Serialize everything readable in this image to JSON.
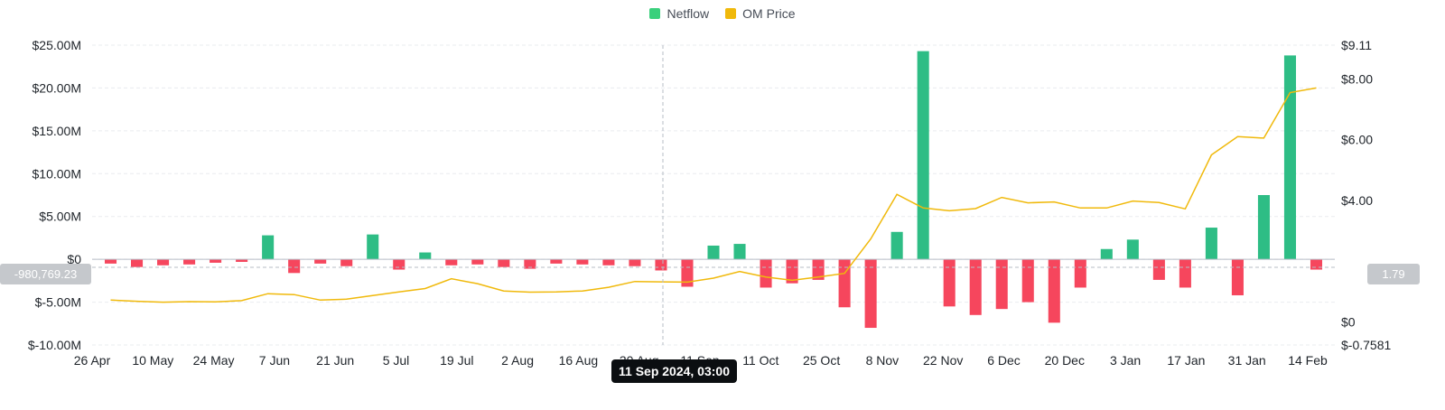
{
  "legend": [
    {
      "label": "Netflow",
      "color": "#2ebd85"
    },
    {
      "label": "OM Price",
      "color": "#f0b90b"
    }
  ],
  "crosshair": {
    "time_label": "11 Sep 2024, 03:00",
    "left_value": "-980,769.23",
    "right_value": "1.79"
  },
  "chart_data": {
    "type": "bar",
    "title": "",
    "xlabel": "",
    "ylabel": "",
    "x_tick_labels": [
      "26 Apr",
      "10 May",
      "24 May",
      "7 Jun",
      "21 Jun",
      "5 Jul",
      "19 Jul",
      "2 Aug",
      "16 Aug",
      "30 Aug",
      "11 Sep",
      "11 Oct",
      "25 Oct",
      "8 Nov",
      "22 Nov",
      "6 Dec",
      "20 Dec",
      "3 Jan",
      "17 Jan",
      "31 Jan",
      "14 Feb"
    ],
    "y_left": {
      "ticks": [
        25000000,
        20000000,
        15000000,
        10000000,
        5000000,
        0,
        -5000000,
        -10000000
      ],
      "tick_labels": [
        "$25.00M",
        "$20.00M",
        "$15.00M",
        "$10.00M",
        "$5.00M",
        "$0",
        "$-5.00M",
        "$-10.00M"
      ],
      "range": [
        -10000000,
        25000000
      ]
    },
    "y_right": {
      "ticks": [
        9.11,
        8.0,
        6.0,
        4.0,
        0,
        -0.7581
      ],
      "tick_labels": [
        "$9.11",
        "$8.00",
        "$6.00",
        "$4.00",
        "$0",
        "$-0.7581"
      ],
      "range": [
        -0.7581,
        9.11
      ]
    },
    "grid": true,
    "legend_position": "top-center",
    "series": [
      {
        "name": "Netflow",
        "type": "bar",
        "positive_color": "#2ebd85",
        "negative_color": "#f6465d",
        "dates": [
          "26 Apr",
          "3 May",
          "10 May",
          "17 May",
          "24 May",
          "31 May",
          "7 Jun",
          "14 Jun",
          "21 Jun",
          "28 Jun",
          "5 Jul",
          "12 Jul",
          "19 Jul",
          "26 Jul",
          "2 Aug",
          "9 Aug",
          "16 Aug",
          "23 Aug",
          "30 Aug",
          "6 Sep",
          "13 Sep",
          "20 Sep",
          "27 Sep",
          "4 Oct",
          "11 Oct",
          "18 Oct",
          "25 Oct",
          "1 Nov",
          "8 Nov",
          "15 Nov",
          "18 Nov",
          "22 Nov",
          "25 Nov",
          "29 Nov",
          "6 Dec",
          "13 Dec",
          "20 Dec",
          "27 Dec",
          "3 Jan",
          "10 Jan",
          "17 Jan",
          "24 Jan",
          "31 Jan",
          "7 Feb",
          "11 Feb",
          "14 Feb",
          "17 Feb"
        ],
        "values": [
          -500000,
          -900000,
          -700000,
          -600000,
          -400000,
          -300000,
          2800000,
          -1600000,
          -500000,
          -800000,
          2900000,
          -1200000,
          800000,
          -700000,
          -600000,
          -900000,
          -1100000,
          -500000,
          -600000,
          -700000,
          -800000,
          -1300000,
          -3200000,
          1600000,
          1800000,
          -3300000,
          -2800000,
          -2400000,
          -5600000,
          -8000000,
          3200000,
          24300000,
          -5500000,
          -6500000,
          -5800000,
          -5000000,
          -7400000,
          -3300000,
          1200000,
          2300000,
          -2400000,
          -3300000,
          3700000,
          -4200000,
          7500000,
          23800000,
          -1200000
        ]
      },
      {
        "name": "OM Price",
        "type": "line",
        "color": "#f0b90b",
        "dates": [
          "26 Apr",
          "3 May",
          "10 May",
          "17 May",
          "24 May",
          "31 May",
          "7 Jun",
          "14 Jun",
          "21 Jun",
          "28 Jun",
          "5 Jul",
          "12 Jul",
          "19 Jul",
          "26 Jul",
          "2 Aug",
          "9 Aug",
          "16 Aug",
          "23 Aug",
          "30 Aug",
          "6 Sep",
          "13 Sep",
          "20 Sep",
          "27 Sep",
          "4 Oct",
          "11 Oct",
          "18 Oct",
          "25 Oct",
          "1 Nov",
          "8 Nov",
          "15 Nov",
          "18 Nov",
          "22 Nov",
          "25 Nov",
          "29 Nov",
          "6 Dec",
          "13 Dec",
          "20 Dec",
          "27 Dec",
          "3 Jan",
          "10 Jan",
          "17 Jan",
          "24 Jan",
          "31 Jan",
          "7 Feb",
          "11 Feb",
          "14 Feb",
          "17 Feb"
        ],
        "values": [
          0.72,
          0.68,
          0.65,
          0.67,
          0.66,
          0.7,
          0.93,
          0.9,
          0.72,
          0.75,
          0.87,
          0.99,
          1.1,
          1.42,
          1.26,
          1.02,
          0.98,
          0.99,
          1.02,
          1.14,
          1.33,
          1.32,
          1.31,
          1.44,
          1.66,
          1.48,
          1.37,
          1.48,
          1.6,
          2.73,
          4.2,
          3.75,
          3.66,
          3.73,
          4.1,
          3.92,
          3.95,
          3.75,
          3.75,
          3.98,
          3.93,
          3.72,
          5.5,
          6.1,
          6.05,
          7.55,
          7.7
        ]
      }
    ]
  }
}
